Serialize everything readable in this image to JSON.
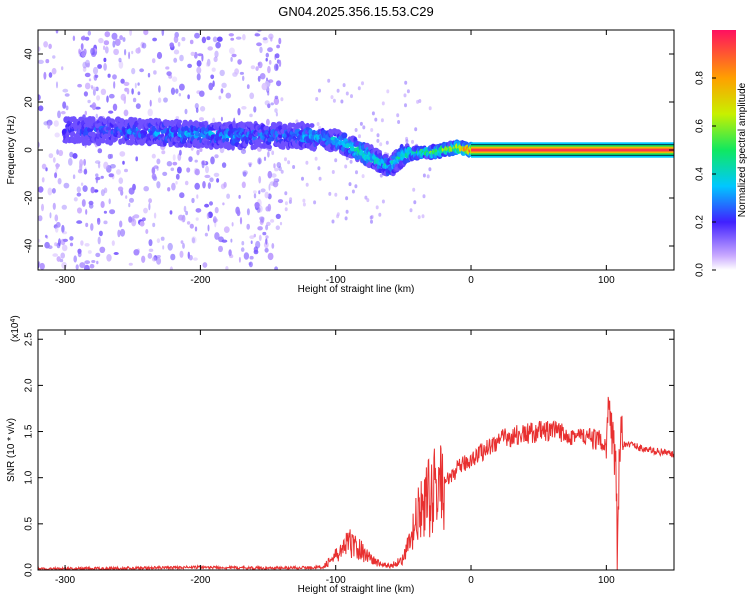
{
  "figure_title": "GN04.2025.356.15.53.C29",
  "colors": {
    "signal_line": "#e83030",
    "spectrogram_low": "#c9a9ff",
    "spectrogram_mid": "#4020ff",
    "spectrogram_high": "#ff1060"
  },
  "chart_data": [
    {
      "type": "heatmap",
      "name": "spectrogram",
      "title": "GN04.2025.356.15.53.C29",
      "xlabel": "Height of straight line (km)",
      "ylabel": "Frequency (Hz)",
      "xlim": [
        -320,
        150
      ],
      "ylim": [
        -50,
        50
      ],
      "xticks": [
        -300,
        -200,
        -100,
        0,
        100
      ],
      "yticks": [
        -40,
        -20,
        0,
        20,
        40
      ],
      "colorbar": {
        "label": "Normalized spectral amplitude",
        "range": [
          0,
          1
        ],
        "ticks": [
          "0.0",
          "0.2",
          "0.4",
          "0.6",
          "0.8"
        ]
      },
      "ridge": {
        "x": [
          -290,
          -260,
          -220,
          -180,
          -150,
          -130,
          -110,
          -95,
          -80,
          -70,
          -60,
          -50,
          -40,
          -30,
          -20,
          -10,
          0,
          50,
          100,
          150
        ],
        "freq": [
          8,
          8,
          7,
          6,
          6,
          6,
          5,
          3,
          -1,
          -4,
          -7,
          -2,
          -1,
          -1,
          0,
          1,
          0,
          0,
          0,
          0
        ],
        "amplitude": [
          0.2,
          0.25,
          0.3,
          0.3,
          0.25,
          0.28,
          0.35,
          0.4,
          0.45,
          0.4,
          0.35,
          0.45,
          0.5,
          0.55,
          0.6,
          0.7,
          0.9,
          0.95,
          0.9,
          0.9
        ]
      }
    },
    {
      "type": "line",
      "name": "snr",
      "xlabel": "Height of straight line (km)",
      "ylabel": "SNR (10 * v/v)",
      "y_scale_label": "(x10",
      "y_scale_exponent": "4",
      "xlim": [
        -320,
        150
      ],
      "ylim": [
        0,
        2.6
      ],
      "xticks": [
        -300,
        -200,
        -100,
        0,
        100
      ],
      "yticks": [
        "0.0",
        "0.5",
        "1.0",
        "1.5",
        "2.0",
        "2.5"
      ],
      "series": [
        {
          "name": "SNR",
          "x": [
            -320,
            -250,
            -200,
            -150,
            -110,
            -100,
            -90,
            -80,
            -70,
            -60,
            -50,
            -45,
            -40,
            -35,
            -30,
            -25,
            -20,
            -15,
            -10,
            -5,
            0,
            10,
            20,
            30,
            40,
            50,
            60,
            70,
            80,
            90,
            100,
            103,
            105,
            107,
            108,
            110,
            115,
            120,
            130,
            140,
            150
          ],
          "y": [
            0.01,
            0.02,
            0.03,
            0.02,
            0.03,
            0.15,
            0.3,
            0.2,
            0.08,
            0.04,
            0.12,
            0.3,
            0.55,
            0.7,
            0.8,
            0.9,
            0.95,
            1.0,
            1.1,
            1.15,
            1.2,
            1.3,
            1.4,
            1.45,
            1.47,
            1.5,
            1.5,
            1.48,
            1.45,
            1.42,
            1.38,
            1.9,
            1.35,
            1.3,
            0.2,
            1.3,
            1.38,
            1.35,
            1.3,
            1.28,
            1.25
          ]
        }
      ]
    }
  ]
}
